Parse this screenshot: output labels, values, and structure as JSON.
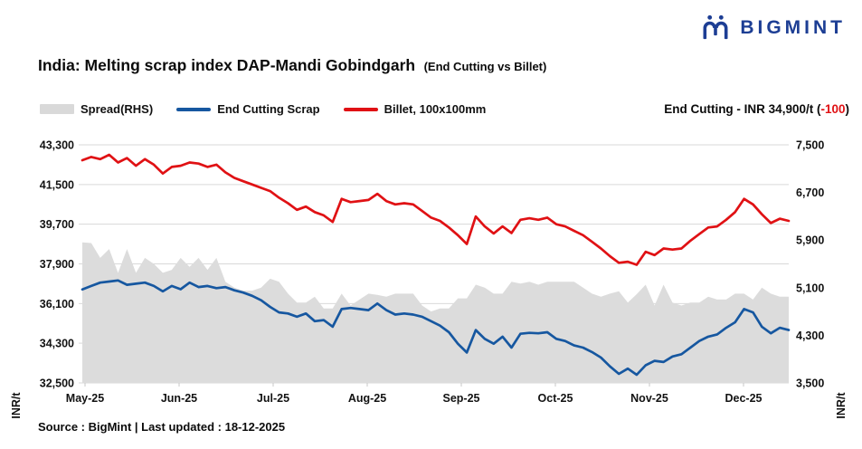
{
  "brand": {
    "name": "BIGMINT",
    "color": "#1d3e94"
  },
  "title": {
    "main": "India: Melting scrap index DAP-Mandi Gobindgarh",
    "paren": "(End Cutting vs Billet)"
  },
  "legend": {
    "items": [
      {
        "label": "Spread(RHS)",
        "type": "area",
        "color": "#d9d9d9"
      },
      {
        "label": "End Cutting Scrap",
        "type": "line",
        "color": "#1657a0"
      },
      {
        "label": "Billet, 100x100mm",
        "type": "line",
        "color": "#e01114"
      }
    ]
  },
  "annotation": {
    "prefix": "End Cutting - INR 34,900/t (",
    "change": "-100",
    "suffix": ")",
    "change_color": "#e01114"
  },
  "footer": {
    "text": "Source : BigMint | Last updated : 18-12-2025"
  },
  "chart_data": {
    "type": "line+area",
    "title": "India: Melting scrap index DAP-Mandi Gobindgarh (End Cutting vs Billet)",
    "x_tick_labels": [
      "May-25",
      "Jun-25",
      "Jul-25",
      "Aug-25",
      "Sep-25",
      "Oct-25",
      "Nov-25",
      "Dec-25"
    ],
    "left_axis": {
      "label": "INR/t",
      "min": 32500,
      "max": 43300,
      "ticks": [
        43300,
        41500,
        39700,
        37900,
        36100,
        34300,
        32500
      ]
    },
    "right_axis": {
      "label": "INR/t",
      "min": 3500,
      "max": 7500,
      "ticks": [
        7500,
        6700,
        5900,
        5100,
        4300,
        3500
      ]
    },
    "grid": true,
    "grid_color": "#d9d9d9",
    "legend_position": "top-left",
    "series": [
      {
        "name": "Spread(RHS)",
        "axis": "right",
        "type": "area",
        "color": "#dcdcdc",
        "values": [
          5860,
          5850,
          5600,
          5750,
          5350,
          5750,
          5350,
          5600,
          5500,
          5350,
          5400,
          5600,
          5450,
          5600,
          5400,
          5600,
          5200,
          5100,
          5050,
          5050,
          5100,
          5250,
          5200,
          5000,
          4850,
          4850,
          4950,
          4750,
          4750,
          5000,
          4800,
          4900,
          5000,
          4980,
          4950,
          5000,
          5000,
          5000,
          4800,
          4700,
          4750,
          4750,
          4920,
          4920,
          5150,
          5100,
          5000,
          5000,
          5200,
          5170,
          5200,
          5150,
          5200,
          5200,
          5200,
          5200,
          5100,
          5000,
          4950,
          5000,
          5040,
          4850,
          4990,
          5150,
          4800,
          5150,
          4850,
          4800,
          4850,
          4850,
          4950,
          4900,
          4900,
          5000,
          5000,
          4900,
          5100,
          5000,
          4950,
          4950
        ]
      },
      {
        "name": "End Cutting Scrap",
        "axis": "left",
        "type": "line",
        "color": "#1657a0",
        "values": [
          36740,
          36900,
          37050,
          37100,
          37150,
          36950,
          37000,
          37050,
          36900,
          36650,
          36900,
          36750,
          37050,
          36850,
          36900,
          36800,
          36850,
          36700,
          36600,
          36450,
          36250,
          35950,
          35700,
          35650,
          35500,
          35650,
          35300,
          35350,
          35050,
          35850,
          35900,
          35850,
          35800,
          36100,
          35800,
          35600,
          35650,
          35600,
          35500,
          35300,
          35100,
          34800,
          34280,
          33880,
          34900,
          34500,
          34280,
          34600,
          34100,
          34730,
          34770,
          34750,
          34800,
          34500,
          34400,
          34200,
          34100,
          33900,
          33650,
          33250,
          32910,
          33150,
          32870,
          33300,
          33500,
          33450,
          33700,
          33800,
          34100,
          34400,
          34600,
          34700,
          35000,
          35250,
          35850,
          35700,
          35050,
          34750,
          35000,
          34900
        ]
      },
      {
        "name": "Billet, 100x100mm",
        "axis": "left",
        "type": "line",
        "color": "#e01114",
        "values": [
          42600,
          42750,
          42650,
          42850,
          42500,
          42700,
          42350,
          42650,
          42400,
          42000,
          42300,
          42350,
          42500,
          42450,
          42300,
          42400,
          42050,
          41800,
          41650,
          41500,
          41350,
          41200,
          40900,
          40650,
          40350,
          40500,
          40250,
          40100,
          39800,
          40850,
          40700,
          40750,
          40800,
          41080,
          40750,
          40600,
          40650,
          40600,
          40300,
          40000,
          39850,
          39550,
          39200,
          38800,
          40050,
          39600,
          39280,
          39600,
          39300,
          39900,
          39970,
          39900,
          40000,
          39700,
          39600,
          39400,
          39200,
          38900,
          38600,
          38250,
          37950,
          38000,
          37860,
          38450,
          38300,
          38600,
          38550,
          38600,
          38950,
          39250,
          39550,
          39600,
          39900,
          40250,
          40850,
          40600,
          40150,
          39750,
          39950,
          39850
        ]
      }
    ],
    "latest": {
      "series": "End Cutting Scrap",
      "value": 34900,
      "change": -100
    }
  }
}
